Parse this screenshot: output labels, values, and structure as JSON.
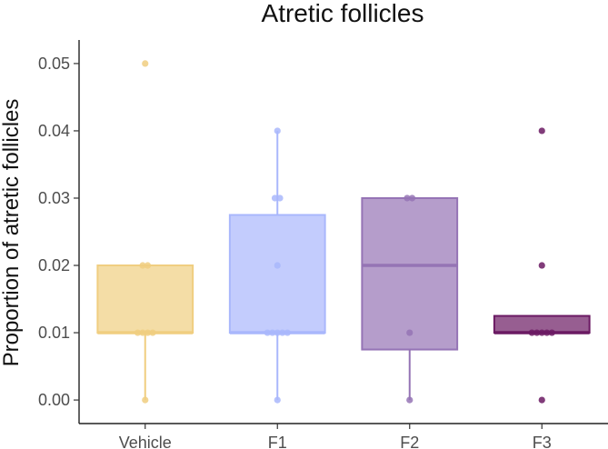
{
  "chart_data": {
    "type": "boxplot",
    "title": "Atretic follicles",
    "xlabel": "",
    "ylabel": "Proportion of atretic follicles",
    "ylim": [
      -0.0035,
      0.0535
    ],
    "yticks": [
      "0.00",
      "0.01",
      "0.02",
      "0.03",
      "0.04",
      "0.05"
    ],
    "ytick_values": [
      0,
      0.01,
      0.02,
      0.03,
      0.04,
      0.05
    ],
    "grid": false,
    "legend": "none",
    "categories": [
      "Vehicle",
      "F1",
      "F2",
      "F3"
    ],
    "colors": [
      "#F0CE80",
      "#A9B7FC",
      "#9574B5",
      "#6B1A63"
    ],
    "boxes": [
      {
        "q1": 0.01,
        "median": 0.01,
        "q3": 0.02,
        "whisker_low": 0.0,
        "whisker_high": 0.02
      },
      {
        "q1": 0.01,
        "median": 0.01,
        "q3": 0.0275,
        "whisker_low": 0.0,
        "whisker_high": 0.04
      },
      {
        "q1": 0.0075,
        "median": 0.02,
        "q3": 0.03,
        "whisker_low": 0.0,
        "whisker_high": 0.03
      },
      {
        "q1": 0.01,
        "median": 0.01,
        "q3": 0.0125,
        "whisker_low": 0.01,
        "whisker_high": 0.0125
      }
    ],
    "points": [
      [
        0.0,
        0.01,
        0.01,
        0.01,
        0.01,
        0.02,
        0.02,
        0.05
      ],
      [
        0.0,
        0.01,
        0.01,
        0.01,
        0.01,
        0.01,
        0.02,
        0.03,
        0.03,
        0.04
      ],
      [
        0.0,
        0.01,
        0.03,
        0.03
      ],
      [
        0.0,
        0.01,
        0.01,
        0.01,
        0.01,
        0.01,
        0.02,
        0.04
      ]
    ]
  }
}
